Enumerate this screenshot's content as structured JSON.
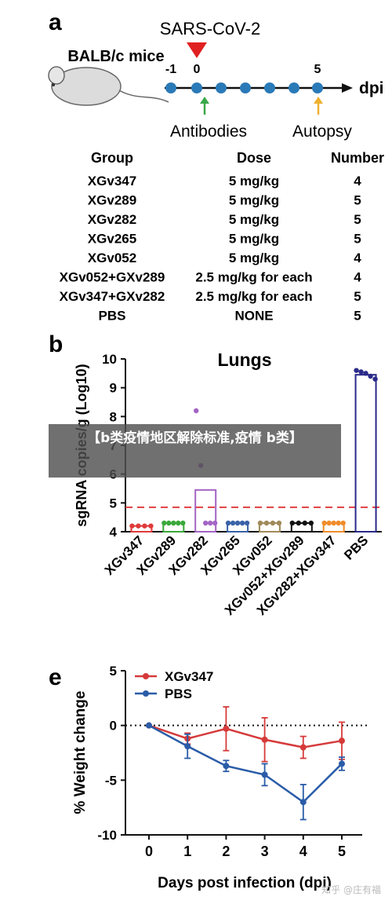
{
  "panel_a": {
    "letter": "a",
    "virus": "SARS-CoV-2",
    "mouse": "BALB/c mice",
    "timeline_ticks": [
      -1,
      0,
      5
    ],
    "timeline_unit": "dpi",
    "antibodies_label": "Antibodies",
    "autopsy_label": "Autopsy",
    "table_headers": [
      "Group",
      "Dose",
      "Number"
    ],
    "table_rows": [
      [
        "XGv347",
        "5 mg/kg",
        "4"
      ],
      [
        "XGv289",
        "5 mg/kg",
        "5"
      ],
      [
        "XGv282",
        "5 mg/kg",
        "5"
      ],
      [
        "XGv265",
        "5 mg/kg",
        "5"
      ],
      [
        "XGv052",
        "5 mg/kg",
        "4"
      ],
      [
        "XGv052+GXv289",
        "2.5 mg/kg for each",
        "4"
      ],
      [
        "XGv347+GXv282",
        "2.5 mg/kg for each",
        "5"
      ],
      [
        "PBS",
        "NONE",
        "5"
      ]
    ]
  },
  "overlay": {
    "banner": "【b类疫情地区解除标准,疫情 b类】",
    "watermark": "知乎 @庄有福"
  },
  "chart_data": [
    {
      "type": "bar",
      "panel": "b",
      "title": "Lungs",
      "ylabel": "sgRNA copies/g (Log10)",
      "ylim": [
        4,
        10
      ],
      "yticks": [
        4,
        5,
        6,
        7,
        8,
        9,
        10
      ],
      "categories": [
        "XGv347",
        "XGv289",
        "XGv282",
        "XGv265",
        "XGv052",
        "XGv052+XGv289",
        "XGv282+XGv347",
        "PBS"
      ],
      "values": [
        4.2,
        4.3,
        5.45,
        4.3,
        4.3,
        4.3,
        4.3,
        9.45
      ],
      "colors": [
        "#e03a3a",
        "#3aa83a",
        "#a464c4",
        "#3a62a8",
        "#a08a5a",
        "#111111",
        "#f08c2a",
        "#2a2a8a"
      ],
      "points": [
        [
          4.2,
          4.2,
          4.2,
          4.2
        ],
        [
          4.3,
          4.3,
          4.3,
          4.3,
          4.3
        ],
        [
          8.2,
          6.3,
          4.3,
          4.3,
          4.3
        ],
        [
          4.3,
          4.3,
          4.3,
          4.3,
          4.3
        ],
        [
          4.3,
          4.3,
          4.3,
          4.3
        ],
        [
          4.3,
          4.3,
          4.3,
          4.3
        ],
        [
          4.3,
          4.3,
          4.3,
          4.3,
          4.3
        ],
        [
          9.6,
          9.55,
          9.5,
          9.4,
          9.3
        ]
      ],
      "threshold": 4.85
    },
    {
      "type": "line",
      "panel": "e",
      "xlabel": "Days post infection (dpi)",
      "ylabel": "% Weight change",
      "x": [
        0,
        1,
        2,
        3,
        4,
        5
      ],
      "xlim": [
        -0.5,
        5.5
      ],
      "ylim": [
        -10,
        5
      ],
      "yticks": [
        5,
        0,
        -5,
        -10
      ],
      "reference_line": 0,
      "legend_position": "top-left",
      "series": [
        {
          "name": "XGv347",
          "color": "#d63a3a",
          "values": [
            0,
            -1.2,
            -0.3,
            -1.3,
            -2.0,
            -1.4
          ],
          "errors": [
            0,
            0.5,
            2.0,
            2.0,
            1.0,
            1.7
          ]
        },
        {
          "name": "PBS",
          "color": "#2a5ca8",
          "values": [
            0,
            -1.9,
            -3.7,
            -4.5,
            -7.0,
            -3.5
          ],
          "errors": [
            0,
            1.1,
            0.5,
            1.0,
            1.6,
            0.6
          ]
        }
      ]
    }
  ]
}
